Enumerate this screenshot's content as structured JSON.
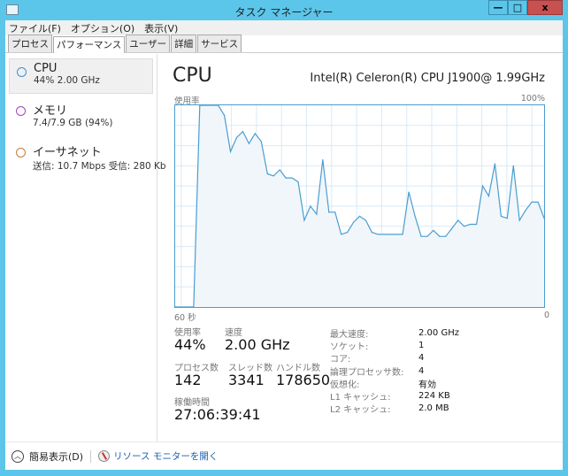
{
  "window": {
    "title": "タスク マネージャー",
    "minimize": "—",
    "maximize": "□",
    "close": "x"
  },
  "menu": [
    "ファイル(F)",
    "オプション(O)",
    "表示(V)"
  ],
  "tabs": [
    {
      "label": "プロセス"
    },
    {
      "label": "パフォーマンス",
      "active": true
    },
    {
      "label": "ユーザー"
    },
    {
      "label": "詳細"
    },
    {
      "label": "サービス"
    }
  ],
  "sidebar": [
    {
      "name": "CPU",
      "sub": "44% 2.00 GHz",
      "color": "#3f8fd0",
      "selected": true
    },
    {
      "name": "メモリ",
      "sub": "7.4/7.9 GB (94%)",
      "color": "#a640c0"
    },
    {
      "name": "イーサネット",
      "sub": "送信: 10.7 Mbps 受信: 280 Kb",
      "color": "#c87a3a"
    }
  ],
  "main": {
    "title": "CPU",
    "cpu_name": "Intel(R) Celeron(R) CPU J1900@ 1.99GHz",
    "chart_label": "使用率",
    "chart_max": "100%",
    "x_left": "60 秒",
    "x_right": "0"
  },
  "chart_data": {
    "type": "area",
    "ylabel": "使用率",
    "ylim": [
      0,
      100
    ],
    "xlim": [
      60,
      0
    ],
    "xunit": "秒",
    "grid": true,
    "color": "#4a9dd1",
    "values": [
      0,
      0,
      0,
      0,
      100,
      100,
      100,
      100,
      95,
      77,
      84,
      87,
      81,
      86,
      82,
      66,
      65,
      68,
      64,
      64,
      62,
      43,
      50,
      46,
      73,
      47,
      47,
      36,
      37,
      42,
      45,
      43,
      37,
      36,
      36,
      36,
      36,
      36,
      57,
      45,
      35,
      35,
      38,
      35,
      35,
      39,
      43,
      40,
      41,
      41,
      60,
      55,
      71,
      45,
      44,
      70,
      43,
      48,
      52,
      52,
      44
    ]
  },
  "stats": {
    "usage_label": "使用率",
    "usage": "44%",
    "speed_label": "速度",
    "speed": "2.00 GHz",
    "proc_label": "プロセス数",
    "proc": "142",
    "thread_label": "スレッド数",
    "thread": "3341",
    "handle_label": "ハンドル数",
    "handle": "178650",
    "uptime_label": "稼働時間",
    "uptime": "27:06:39:41"
  },
  "details": [
    [
      "最大速度:",
      "2.00 GHz"
    ],
    [
      "ソケット:",
      "1"
    ],
    [
      "コア:",
      "4"
    ],
    [
      "論理プロセッサ数:",
      "4"
    ],
    [
      "仮想化:",
      "有効"
    ],
    [
      "L1 キャッシュ:",
      "224 KB"
    ],
    [
      "L2 キャッシュ:",
      "2.0 MB"
    ]
  ],
  "bottom": {
    "fewer": "簡易表示(D)",
    "monitor": "リソース モニターを開く"
  }
}
